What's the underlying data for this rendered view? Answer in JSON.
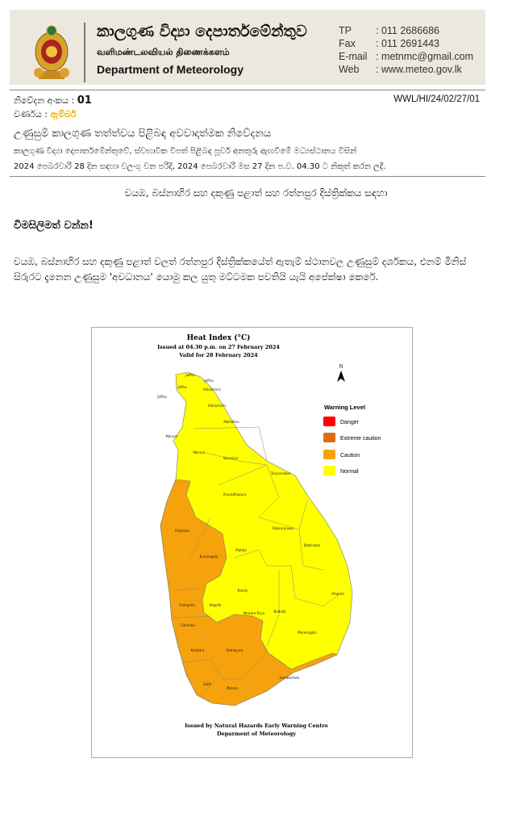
{
  "header": {
    "title_sinhala": "කාලගුණ විද්‍යා දෙපාර්තමේන්තුව",
    "title_tamil": "வளிமண்டலவியல் திணைக்களம்",
    "title_english": "Department of Meteorology",
    "contacts": [
      {
        "label": "TP",
        "value": ": 011 2686686"
      },
      {
        "label": "Fax",
        "value": ": 011 2691443"
      },
      {
        "label": "E-mail",
        "value": ": metnmc@gmail.com"
      },
      {
        "label": "Web",
        "value": ": www.meteo.gov.lk"
      }
    ]
  },
  "meta": {
    "notice_label": "නිවේදන අංකය : ",
    "notice_number": "01",
    "colour_label": "වර්ණය : ",
    "colour_value": "ඇම්බර්",
    "reference": "WWL/HI/24/02/27/01"
  },
  "notice": {
    "title": "උණුසුම් කාලගුණ තත්ත්වය පිළිබඳ අවවාදාත්මක නිවේදනය",
    "subtitle_line1": "කාලගුණ විද්‍යා දෙපාර්තමේන්තුවේ, ස්වභාවික විපත් පිළිබඳ  පූර්ව අනතුරු ඇඟවීමේ මධ්‍යස්ථානය විසින්",
    "subtitle_line2": "2024 පෙබරවාරි 28 දින සඳහා වලංගු වන පරිදි, 2024 පෙබරවාරි මස 27 දින ප.ව. 04.30 ට නිකුත් කරන ලදී.",
    "areas": "වයඹ, බස්නාහිර සහ  දකුණු  පළාත්  සහ රත්නපුර  දිස්ත්‍රික්කය  සඳහා",
    "warning": "විමසිලිමත් වන්න!",
    "body": "වයඹ, බස්නාහිර සහ  දකුණු  පළාත් වලත් රත්නපුර  දිස්ත්‍රික්කයේත්  ඇතැම් ස්ථානවල උණුසුම් දර්ශකය, එනම් මිනිස් සිරුරට දැනෙන උණුසුම 'අවධානය' යොමු කල යුතු මට්ටමක පවතියි යැයි අපේක්ෂා කෙරේ."
  },
  "map": {
    "title": "Heat Index (°C)",
    "issued": "Issued at 04.30 p.m. on 27 February 2024",
    "valid": "Valid for 28 February 2024",
    "north": "N",
    "legend_title": "Warning Level",
    "legend": [
      {
        "label": "Danger",
        "color": "#ff0000"
      },
      {
        "label": "Extreme caution",
        "color": "#e06c10"
      },
      {
        "label": "Caution",
        "color": "#f6a20c"
      },
      {
        "label": "Normal",
        "color": "#ffff00"
      }
    ],
    "footer_line1": "Issued by Natural Hazards Early Warning Centre",
    "footer_line2": "Deparment of Meteorology",
    "districts": [
      "Jaffna",
      "Jaffna",
      "Jaffna",
      "Jaffna",
      "Kilinochchi",
      "Kilinochchi",
      "Mullaitivu",
      "Mannar",
      "Mannar",
      "Vavuniya",
      "Trincomalee",
      "Anuradhapura",
      "Puttalam",
      "Polonnaruwa",
      "Kurunegala",
      "Matale",
      "Batticaloa",
      "Kandy",
      "Ampara",
      "Gampaha",
      "Kegalle",
      "Nuwara Eliya",
      "Badulla",
      "Colombo",
      "Moneragala",
      "Kalutara",
      "Ratnapura",
      "Hambantota",
      "Galle",
      "Matara"
    ]
  }
}
